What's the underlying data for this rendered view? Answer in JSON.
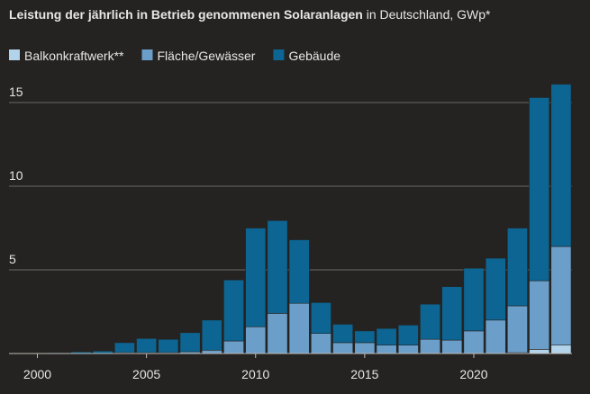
{
  "chart_data": {
    "type": "stacked-bar",
    "title": "Leistung der jährlich in Betrieb genommenen Solaranlagen",
    "subtitle": "in Deutschland, GWp*",
    "x": [
      2000,
      2001,
      2002,
      2003,
      2004,
      2005,
      2006,
      2007,
      2008,
      2009,
      2010,
      2011,
      2012,
      2013,
      2014,
      2015,
      2016,
      2017,
      2018,
      2019,
      2020,
      2021,
      2022,
      2023,
      2024
    ],
    "series": [
      {
        "name": "Balkonkraftwerk**",
        "color": "#b3d3ea",
        "values": [
          0,
          0,
          0,
          0,
          0,
          0,
          0,
          0,
          0,
          0,
          0,
          0,
          0,
          0,
          0,
          0,
          0,
          0,
          0,
          0,
          0,
          0,
          0.05,
          0.25,
          0.5
        ]
      },
      {
        "name": "Fläche/Gewässer",
        "color": "#6b9ec8",
        "values": [
          0,
          0,
          0,
          0,
          0.05,
          0.05,
          0.05,
          0.1,
          0.2,
          0.75,
          1.6,
          2.4,
          3.0,
          1.2,
          0.65,
          0.65,
          0.5,
          0.5,
          0.85,
          0.8,
          1.35,
          2.0,
          2.8,
          4.1,
          5.9
        ]
      },
      {
        "name": "Gebäude",
        "color": "#0c6592",
        "values": [
          0.03,
          0.05,
          0.1,
          0.15,
          0.6,
          0.85,
          0.8,
          1.15,
          1.8,
          3.65,
          5.9,
          5.55,
          3.8,
          1.85,
          1.1,
          0.7,
          1.0,
          1.2,
          2.1,
          3.2,
          3.75,
          3.7,
          4.65,
          10.95,
          9.7
        ]
      }
    ],
    "xlim": [
      1998.7,
      2024.5
    ],
    "xticks": [
      2000,
      2005,
      2010,
      2015,
      2020
    ],
    "ylim": [
      0,
      16.4
    ],
    "yticks": [
      5,
      10,
      15
    ],
    "grid": true
  }
}
